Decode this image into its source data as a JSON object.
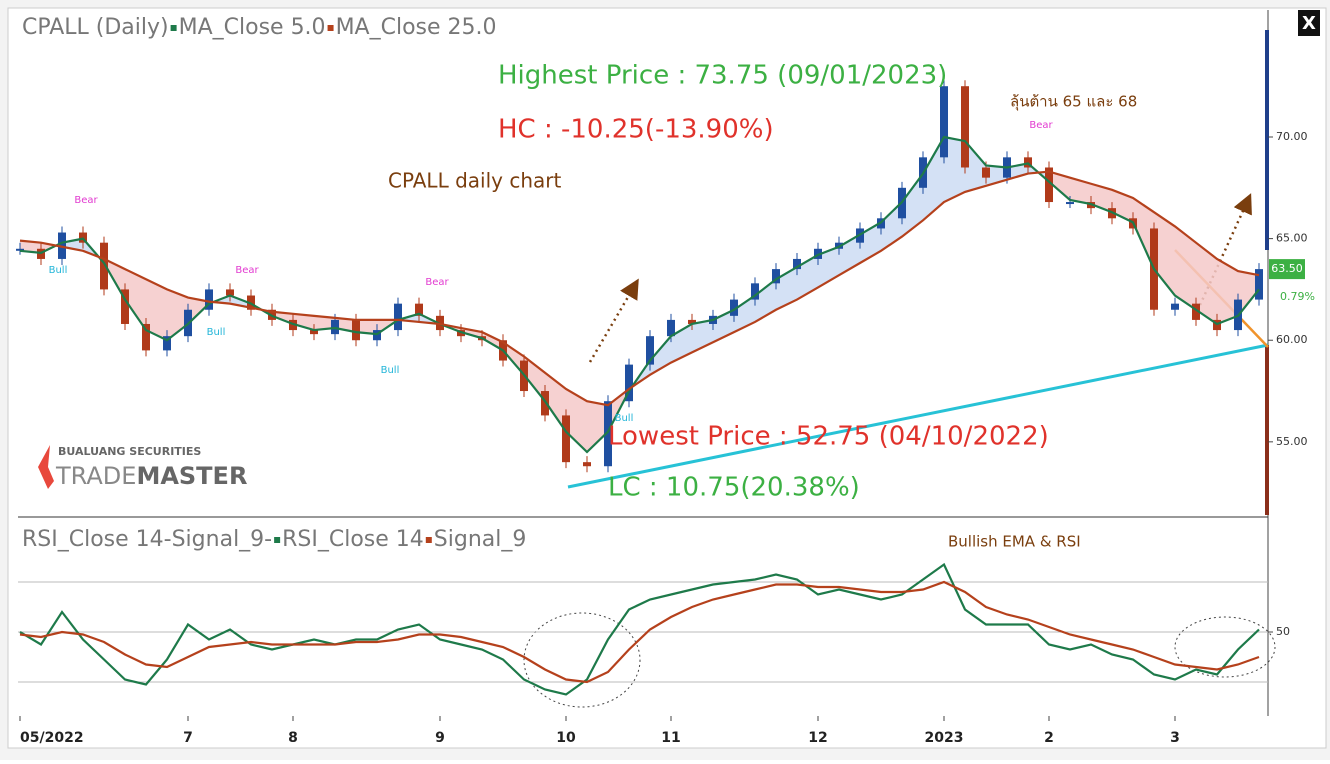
{
  "chart_data": [
    {
      "type": "price",
      "title": "CPALL (Daily)",
      "series": [
        {
          "type": "candlestick",
          "up_color": "#1f4fa0",
          "down_color": "#b03a1a",
          "values": [
            64.5,
            64.0,
            65.3,
            64.8,
            62.5,
            60.8,
            59.5,
            60.2,
            61.5,
            62.5,
            62.2,
            61.5,
            61.0,
            60.5,
            60.3,
            61.0,
            60.0,
            60.5,
            61.8,
            61.2,
            60.5,
            60.2,
            60.0,
            59.0,
            57.5,
            56.3,
            54.0,
            53.8,
            57.0,
            58.8,
            60.2,
            61.0,
            60.8,
            61.2,
            62.0,
            62.8,
            63.5,
            64.0,
            64.5,
            64.8,
            65.5,
            66.0,
            67.5,
            69.0,
            72.5,
            68.5,
            68.0,
            69.0,
            68.5,
            66.8,
            66.8,
            66.5,
            66.0,
            65.5,
            61.5,
            61.8,
            61.0,
            60.5,
            62.0,
            63.5
          ]
        },
        {
          "type": "line",
          "name": "MA_Close 5.0",
          "color": "#1e7a4a",
          "values": [
            64.4,
            64.3,
            64.8,
            65.0,
            63.8,
            62.0,
            60.5,
            60.0,
            60.8,
            61.8,
            62.2,
            61.8,
            61.2,
            60.8,
            60.5,
            60.6,
            60.4,
            60.3,
            61.0,
            61.3,
            60.8,
            60.4,
            60.1,
            59.5,
            58.3,
            57.0,
            55.5,
            54.5,
            55.5,
            57.5,
            59.0,
            60.2,
            60.8,
            61.0,
            61.5,
            62.2,
            63.0,
            63.6,
            64.2,
            64.6,
            65.2,
            65.8,
            66.8,
            68.2,
            70.0,
            69.8,
            68.6,
            68.5,
            68.7,
            67.8,
            66.9,
            66.7,
            66.3,
            65.8,
            63.5,
            62.2,
            61.5,
            60.8,
            61.2,
            62.5
          ]
        },
        {
          "type": "line",
          "name": "MA_Close 25.0",
          "color": "#b5411c",
          "values": [
            64.9,
            64.8,
            64.6,
            64.4,
            64.0,
            63.5,
            63.0,
            62.5,
            62.1,
            61.9,
            61.8,
            61.6,
            61.4,
            61.3,
            61.2,
            61.1,
            61.0,
            61.0,
            61.0,
            60.9,
            60.8,
            60.6,
            60.4,
            59.9,
            59.2,
            58.4,
            57.6,
            57.0,
            56.8,
            57.6,
            58.3,
            58.9,
            59.4,
            59.9,
            60.4,
            60.9,
            61.5,
            62.0,
            62.6,
            63.2,
            63.8,
            64.4,
            65.1,
            65.9,
            66.8,
            67.3,
            67.6,
            67.9,
            68.2,
            68.3,
            68.0,
            67.7,
            67.4,
            67.0,
            66.3,
            65.6,
            64.8,
            64.0,
            63.4,
            63.2
          ]
        }
      ],
      "fill_colors": [
        "#cddcf3",
        "#f5c9c9"
      ],
      "ylim": [
        51.4,
        76.25
      ],
      "yticks": [
        {
          "value": 55,
          "label": "55.00"
        },
        {
          "value": 60,
          "label": "60.00"
        },
        {
          "value": 65,
          "label": "65.00"
        },
        {
          "value": 70,
          "label": "70.00"
        }
      ],
      "last_price": {
        "value": 63.5,
        "label": "63.50",
        "color": "#3cb043"
      },
      "change_label": "0.79%",
      "annotations": [
        {
          "text": "Highest Price : 73.75 (09/01/2023)",
          "color": "#3cb043"
        },
        {
          "text": "HC : -10.25(-13.90%)",
          "color": "#e0322b"
        },
        {
          "text": "CPALL daily chart",
          "color": "#7a3e0e"
        },
        {
          "text": "Lowest Price : 52.75 (04/10/2022)",
          "color": "#e0322b"
        },
        {
          "text": "LC : 10.75(20.38%)",
          "color": "#3cb043"
        },
        {
          "text": "ลุ้นต้าน 65 และ 68",
          "color": "#7a3e0e"
        }
      ],
      "signals": [
        "Bear",
        "Bull",
        "Bear",
        "Bull",
        "Bear",
        "Bull",
        "Bull",
        "Bear"
      ],
      "logo": {
        "top": "BUALUANG SECURITIES",
        "left": "TRADE",
        "right": "MASTER"
      }
    },
    {
      "type": "line",
      "title": "RSI_Close 14-Signal_9-",
      "categories": [
        "05/2022",
        null,
        null,
        null,
        null,
        null,
        null,
        null,
        "7",
        null,
        null,
        null,
        null,
        "8",
        null,
        null,
        null,
        null,
        null,
        null,
        "9",
        null,
        null,
        null,
        null,
        null,
        "10",
        null,
        null,
        null,
        null,
        "11",
        null,
        null,
        null,
        null,
        null,
        null,
        "12",
        null,
        null,
        null,
        null,
        null,
        "2023",
        null,
        null,
        null,
        null,
        "2",
        null,
        null,
        null,
        null,
        null,
        "3",
        null,
        null,
        null,
        null
      ],
      "series": [
        {
          "name": "RSI_Close 14",
          "color": "#1e7a4a",
          "values": [
            50,
            45,
            58,
            47,
            39,
            31,
            29,
            39,
            53,
            47,
            51,
            45,
            43,
            45,
            47,
            45,
            47,
            47,
            51,
            53,
            47,
            45,
            43,
            39,
            31,
            27,
            25,
            31,
            47,
            59,
            63,
            65,
            67,
            69,
            70,
            71,
            73,
            71,
            65,
            67,
            65,
            63,
            65,
            71,
            77,
            59,
            53,
            53,
            53,
            45,
            43,
            45,
            41,
            39,
            33,
            31,
            35,
            33,
            43,
            51
          ]
        },
        {
          "name": "Signal_9",
          "color": "#b5411c",
          "values": [
            49,
            48,
            50,
            49,
            46,
            41,
            37,
            36,
            40,
            44,
            45,
            46,
            45,
            45,
            45,
            45,
            46,
            46,
            47,
            49,
            49,
            48,
            46,
            44,
            40,
            35,
            31,
            30,
            34,
            43,
            51,
            56,
            60,
            63,
            65,
            67,
            69,
            69,
            68,
            68,
            67,
            66,
            66,
            67,
            70,
            66,
            60,
            57,
            55,
            52,
            49,
            47,
            45,
            43,
            40,
            37,
            36,
            35,
            37,
            40
          ]
        }
      ],
      "ylim": [
        16.8,
        94.8
      ],
      "yticks": [
        50
      ],
      "levels": [
        30,
        70
      ],
      "annotations": [
        {
          "text": "Bullish EMA & RSI",
          "color": "#7a3e0e"
        }
      ]
    }
  ],
  "close_button": "X"
}
